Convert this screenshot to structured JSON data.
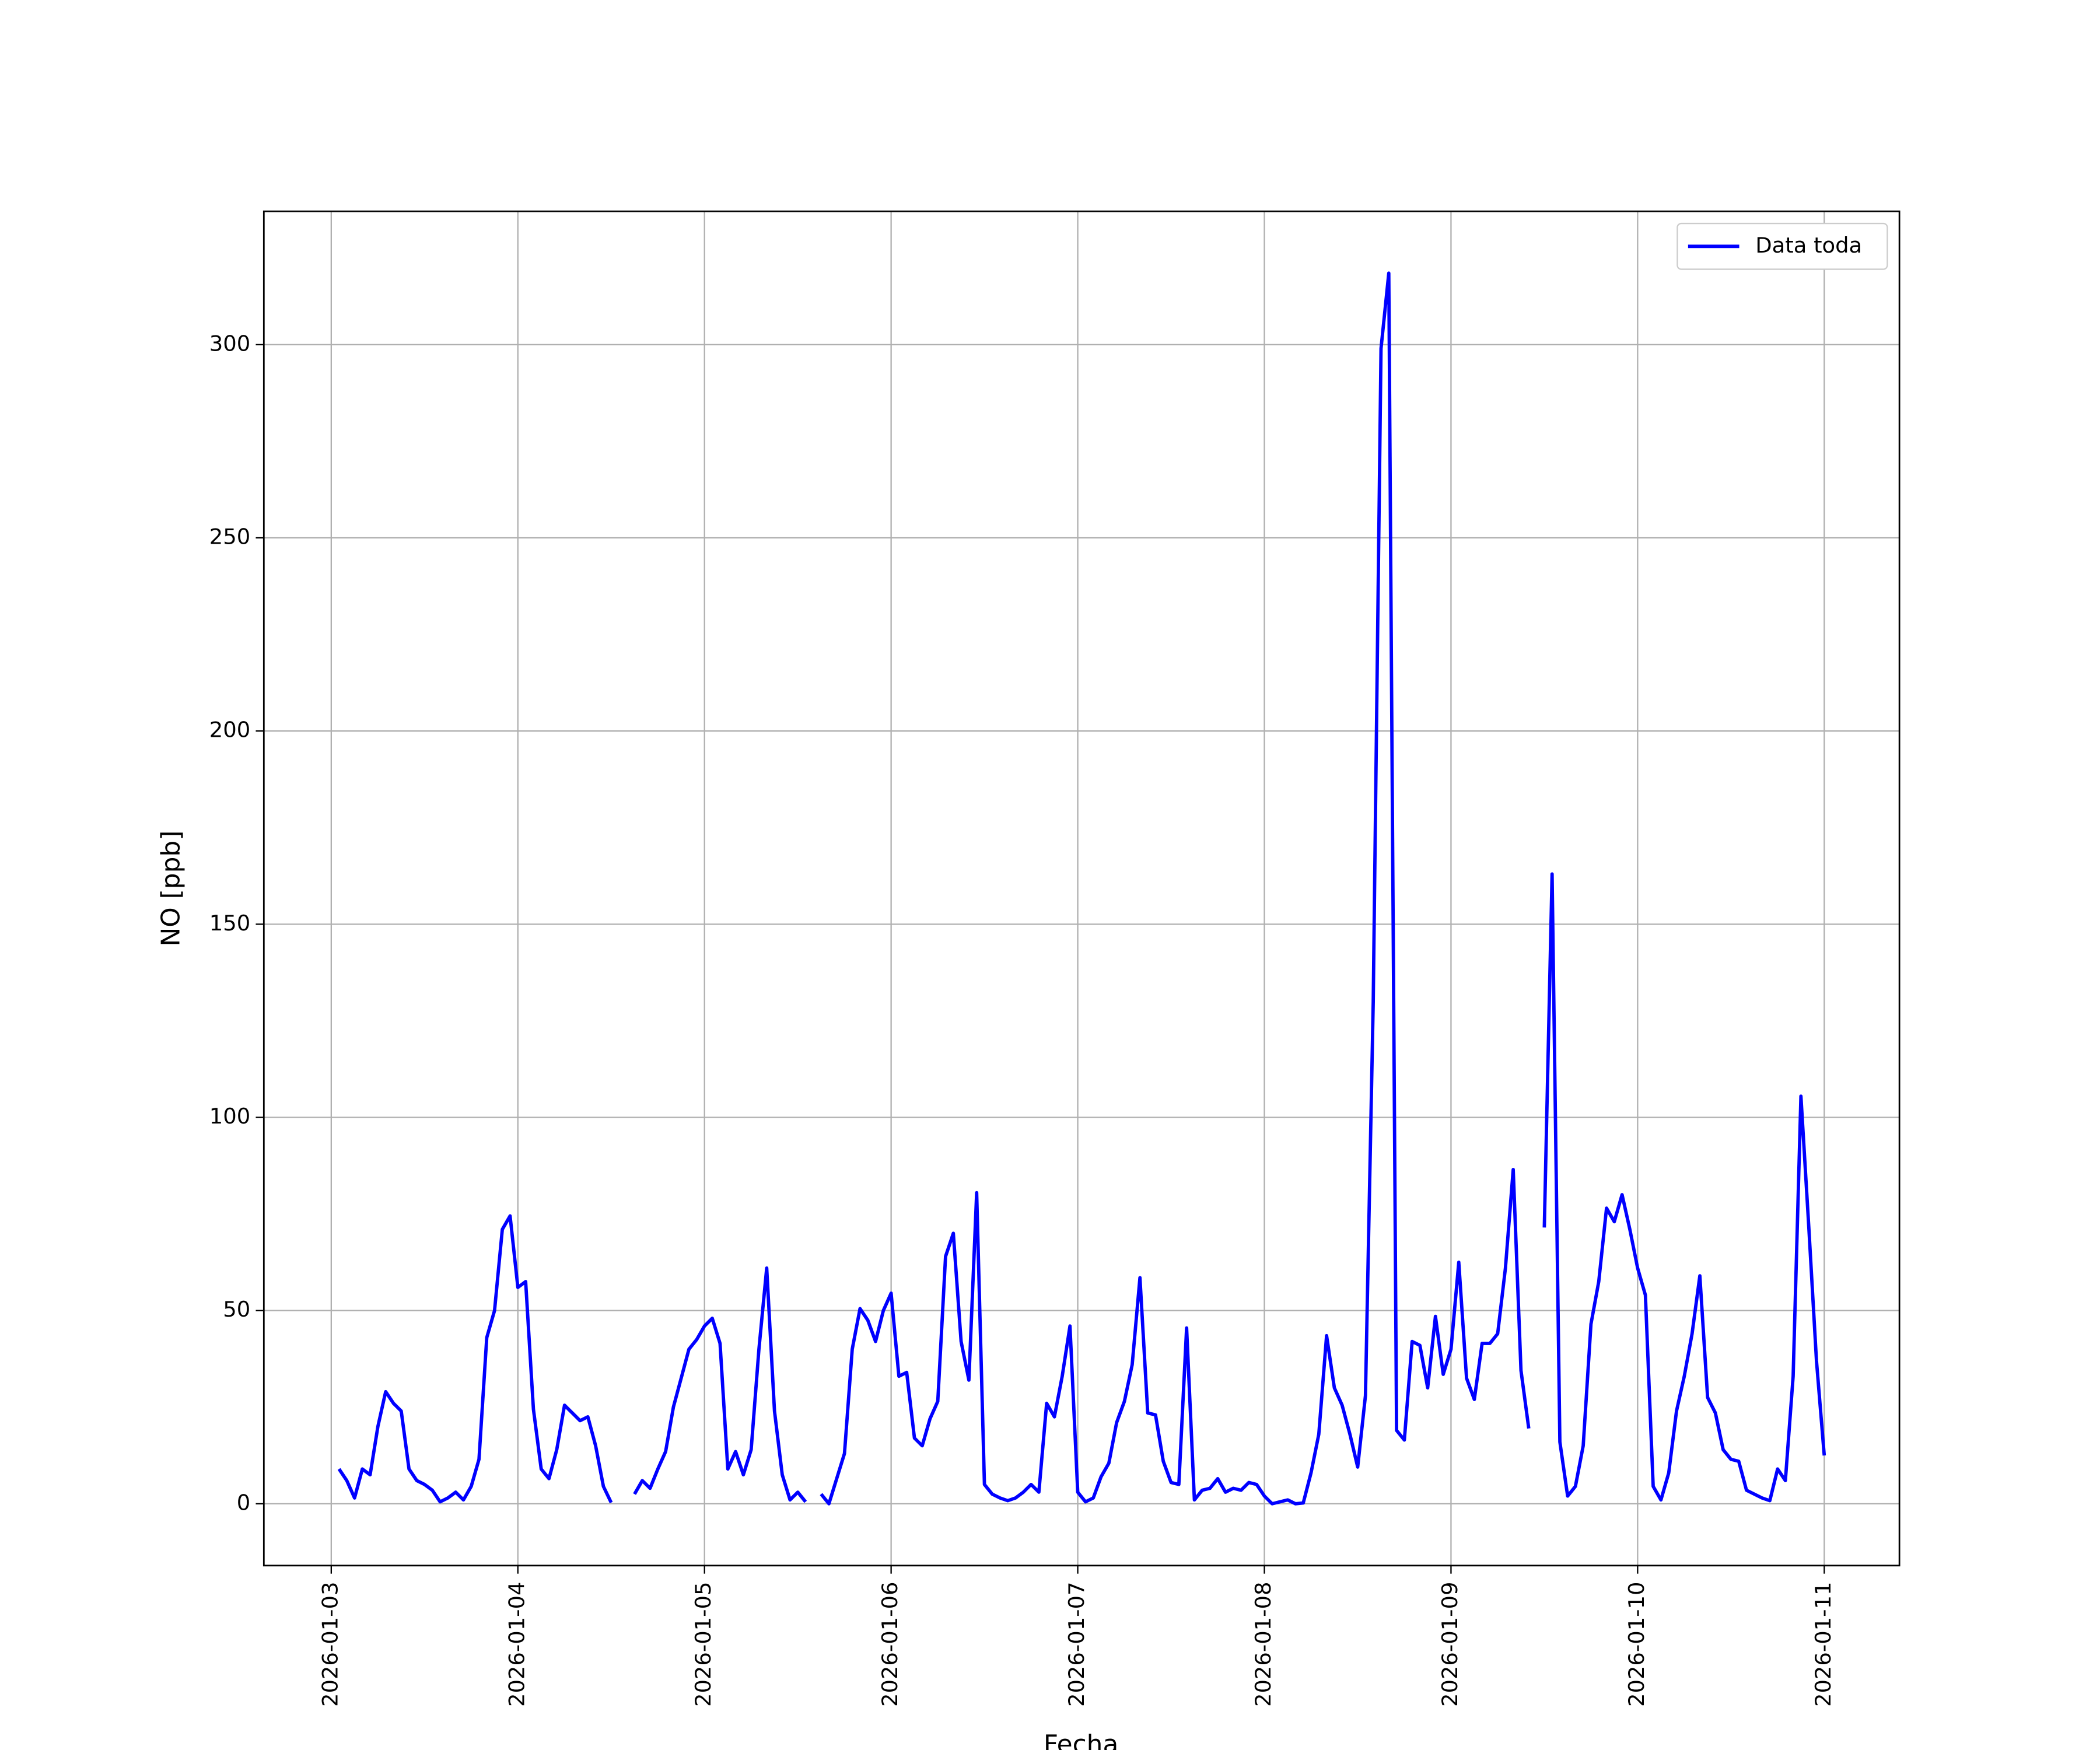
{
  "chart_data": {
    "type": "line",
    "xlabel": "Fecha",
    "ylabel": "NO [ppb]",
    "x": [
      "2026-01-03T01:00",
      "2026-01-03T02:00",
      "2026-01-03T03:00",
      "2026-01-03T04:00",
      "2026-01-03T05:00",
      "2026-01-03T06:00",
      "2026-01-03T07:00",
      "2026-01-03T08:00",
      "2026-01-03T09:00",
      "2026-01-03T10:00",
      "2026-01-03T11:00",
      "2026-01-03T12:00",
      "2026-01-03T13:00",
      "2026-01-03T14:00",
      "2026-01-03T15:00",
      "2026-01-03T16:00",
      "2026-01-03T17:00",
      "2026-01-03T18:00",
      "2026-01-03T19:00",
      "2026-01-03T20:00",
      "2026-01-03T21:00",
      "2026-01-03T22:00",
      "2026-01-03T23:00",
      "2026-01-04T00:00",
      "2026-01-04T01:00",
      "2026-01-04T02:00",
      "2026-01-04T03:00",
      "2026-01-04T04:00",
      "2026-01-04T05:00",
      "2026-01-04T06:00",
      "2026-01-04T07:00",
      "2026-01-04T08:00",
      "2026-01-04T09:00",
      "2026-01-04T10:00",
      "2026-01-04T11:00",
      "2026-01-04T12:00",
      "2026-01-04T13:00",
      "2026-01-04T14:00",
      "2026-01-04T15:00",
      "2026-01-04T16:00",
      "2026-01-04T17:00",
      "2026-01-04T18:00",
      "2026-01-04T19:00",
      "2026-01-04T20:00",
      "2026-01-04T21:00",
      "2026-01-04T22:00",
      "2026-01-04T23:00",
      "2026-01-05T00:00",
      "2026-01-05T01:00",
      "2026-01-05T02:00",
      "2026-01-05T03:00",
      "2026-01-05T04:00",
      "2026-01-05T05:00",
      "2026-01-05T06:00",
      "2026-01-05T07:00",
      "2026-01-05T08:00",
      "2026-01-05T09:00",
      "2026-01-05T10:00",
      "2026-01-05T11:00",
      "2026-01-05T12:00",
      "2026-01-05T13:00",
      "2026-01-05T14:00",
      "2026-01-05T15:00",
      "2026-01-05T16:00",
      "2026-01-05T17:00",
      "2026-01-05T18:00",
      "2026-01-05T19:00",
      "2026-01-05T20:00",
      "2026-01-05T21:00",
      "2026-01-05T22:00",
      "2026-01-05T23:00",
      "2026-01-06T00:00",
      "2026-01-06T01:00",
      "2026-01-06T02:00",
      "2026-01-06T03:00",
      "2026-01-06T04:00",
      "2026-01-06T05:00",
      "2026-01-06T06:00",
      "2026-01-06T07:00",
      "2026-01-06T08:00",
      "2026-01-06T09:00",
      "2026-01-06T10:00",
      "2026-01-06T11:00",
      "2026-01-06T12:00",
      "2026-01-06T13:00",
      "2026-01-06T14:00",
      "2026-01-06T15:00",
      "2026-01-06T16:00",
      "2026-01-06T17:00",
      "2026-01-06T18:00",
      "2026-01-06T19:00",
      "2026-01-06T20:00",
      "2026-01-06T21:00",
      "2026-01-06T22:00",
      "2026-01-06T23:00",
      "2026-01-07T00:00",
      "2026-01-07T01:00",
      "2026-01-07T02:00",
      "2026-01-07T03:00",
      "2026-01-07T04:00",
      "2026-01-07T05:00",
      "2026-01-07T06:00",
      "2026-01-07T07:00",
      "2026-01-07T08:00",
      "2026-01-07T09:00",
      "2026-01-07T10:00",
      "2026-01-07T11:00",
      "2026-01-07T12:00",
      "2026-01-07T13:00",
      "2026-01-07T14:00",
      "2026-01-07T15:00",
      "2026-01-07T16:00",
      "2026-01-07T17:00",
      "2026-01-07T18:00",
      "2026-01-07T19:00",
      "2026-01-07T20:00",
      "2026-01-07T21:00",
      "2026-01-07T22:00",
      "2026-01-07T23:00",
      "2026-01-08T00:00",
      "2026-01-08T01:00",
      "2026-01-08T02:00",
      "2026-01-08T03:00",
      "2026-01-08T04:00",
      "2026-01-08T05:00",
      "2026-01-08T06:00",
      "2026-01-08T07:00",
      "2026-01-08T08:00",
      "2026-01-08T09:00",
      "2026-01-08T10:00",
      "2026-01-08T11:00",
      "2026-01-08T12:00",
      "2026-01-08T13:00",
      "2026-01-08T14:00",
      "2026-01-08T15:00",
      "2026-01-08T16:00",
      "2026-01-08T17:00",
      "2026-01-08T18:00",
      "2026-01-08T19:00",
      "2026-01-08T20:00",
      "2026-01-08T21:00",
      "2026-01-08T22:00",
      "2026-01-08T23:00",
      "2026-01-09T00:00",
      "2026-01-09T01:00",
      "2026-01-09T02:00",
      "2026-01-09T03:00",
      "2026-01-09T04:00",
      "2026-01-09T05:00",
      "2026-01-09T06:00",
      "2026-01-09T07:00",
      "2026-01-09T08:00",
      "2026-01-09T09:00",
      "2026-01-09T10:00",
      "2026-01-09T11:00",
      "2026-01-09T12:00",
      "2026-01-09T13:00",
      "2026-01-09T14:00",
      "2026-01-09T15:00",
      "2026-01-09T16:00",
      "2026-01-09T17:00",
      "2026-01-09T18:00",
      "2026-01-09T19:00",
      "2026-01-09T20:00",
      "2026-01-09T21:00",
      "2026-01-09T22:00",
      "2026-01-09T23:00",
      "2026-01-10T00:00",
      "2026-01-10T01:00",
      "2026-01-10T02:00",
      "2026-01-10T03:00",
      "2026-01-10T04:00",
      "2026-01-10T05:00",
      "2026-01-10T06:00",
      "2026-01-10T07:00",
      "2026-01-10T08:00",
      "2026-01-10T09:00",
      "2026-01-10T10:00",
      "2026-01-10T11:00",
      "2026-01-10T12:00",
      "2026-01-10T13:00",
      "2026-01-10T14:00",
      "2026-01-10T15:00",
      "2026-01-10T16:00",
      "2026-01-10T17:00",
      "2026-01-10T18:00",
      "2026-01-10T19:00",
      "2026-01-10T20:00",
      "2026-01-10T21:00",
      "2026-01-10T22:00",
      "2026-01-10T23:00",
      "2026-01-11T00:00"
    ],
    "series": [
      {
        "name": "Data toda",
        "color": "#0000ff",
        "values": [
          9,
          6,
          1.5,
          9,
          7.5,
          20,
          29,
          26,
          24,
          9,
          6,
          5,
          3.5,
          0.5,
          1.5,
          3,
          1,
          4.5,
          11.5,
          43,
          50,
          71,
          74.5,
          56,
          57.5,
          24.5,
          9,
          6.5,
          14,
          25.5,
          23.5,
          21.5,
          22.5,
          15,
          4.5,
          0.3,
          null,
          null,
          2.5,
          6,
          4,
          9,
          13.5,
          25,
          32.5,
          40,
          42.5,
          46,
          48,
          41.5,
          9,
          13.5,
          7.5,
          14,
          40,
          61,
          24,
          7.5,
          1,
          3,
          0.5,
          null,
          2.5,
          0,
          6.5,
          13,
          40,
          50.5,
          47.5,
          42,
          50,
          54.5,
          33,
          34,
          17,
          15,
          22,
          26.5,
          64,
          70,
          42,
          32,
          80.5,
          5,
          2.5,
          1.5,
          0.8,
          1.5,
          3,
          5,
          3,
          26,
          22.5,
          33,
          46,
          3,
          0.5,
          1.5,
          7,
          10.5,
          21,
          26.5,
          36,
          58.5,
          23.5,
          23,
          11,
          5.5,
          5,
          45.5,
          1,
          3.5,
          4,
          6.5,
          3,
          4,
          3.5,
          5.5,
          5,
          2,
          0,
          0.5,
          1,
          0,
          0.2,
          8,
          18,
          43.5,
          30,
          25.5,
          18,
          9.5,
          28,
          130,
          299,
          318.5,
          19,
          16.5,
          42,
          41,
          30,
          48.5,
          33.5,
          40,
          62.5,
          32.5,
          27,
          41.5,
          41.5,
          44,
          61,
          86.5,
          34.5,
          19.5,
          null,
          71.5,
          163,
          16,
          2,
          4.5,
          15,
          46.5,
          57.5,
          76.5,
          73,
          80,
          71,
          61,
          54,
          4.5,
          1,
          8,
          24,
          33,
          44,
          59,
          27.5,
          23.5,
          14,
          11.5,
          11,
          3.5,
          2.5,
          1.5,
          0.8,
          9,
          6,
          33,
          105.5,
          72,
          37,
          12.5
        ]
      }
    ],
    "xlim": [
      "2026-01-02T15:20",
      "2026-01-11T09:40"
    ],
    "xticks": [
      "2026-01-03",
      "2026-01-04",
      "2026-01-05",
      "2026-01-06",
      "2026-01-07",
      "2026-01-08",
      "2026-01-09",
      "2026-01-10",
      "2026-01-11"
    ],
    "ylim": [
      -16,
      334.5
    ],
    "yticks": [
      0,
      50,
      100,
      150,
      200,
      250,
      300
    ],
    "grid": true,
    "legend": "upper right"
  }
}
